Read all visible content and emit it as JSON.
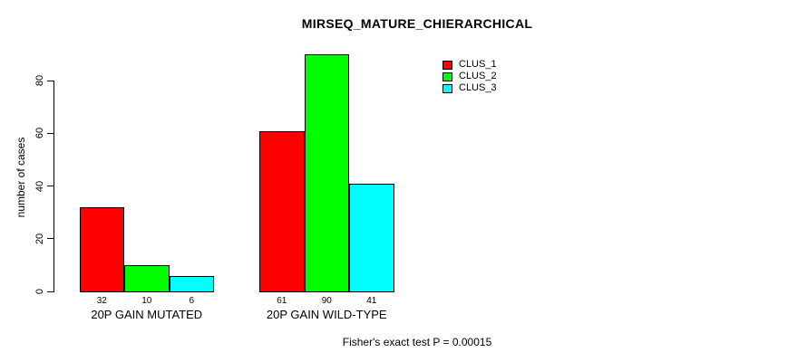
{
  "chart_data": {
    "type": "bar",
    "title": "MIRSEQ_MATURE_CHIERARCHICAL",
    "xlabel": "",
    "ylabel": "number of cases",
    "categories": [
      "20P GAIN MUTATED",
      "20P GAIN WILD-TYPE"
    ],
    "series": [
      {
        "name": "CLUS_1",
        "color": "#ff0000",
        "values": [
          32,
          61
        ]
      },
      {
        "name": "CLUS_2",
        "color": "#00ff00",
        "values": [
          10,
          90
        ]
      },
      {
        "name": "CLUS_3",
        "color": "#00ffff",
        "values": [
          6,
          41
        ]
      }
    ],
    "bar_value_labels_shown": true,
    "yticks": [
      0,
      20,
      40,
      60,
      80
    ],
    "ylim": [
      0,
      90
    ],
    "grid": false,
    "legend_position": "top-right",
    "annotation": "Fisher's exact test P = 0.00015"
  },
  "colors": {
    "background": "#ffffff",
    "axis": "#000000",
    "text": "#000000"
  }
}
